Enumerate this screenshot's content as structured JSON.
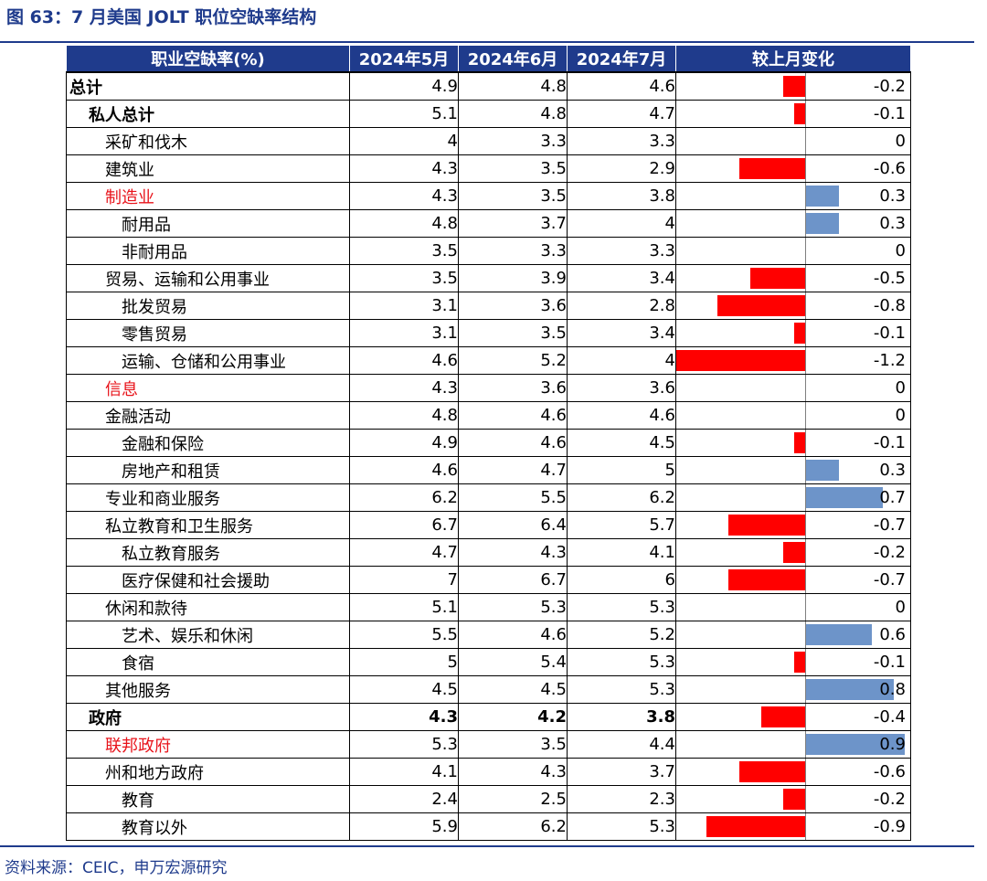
{
  "figure_title": "图 63：7 月美国 JOLT 职位空缺率结构",
  "source": "资料来源：CEIC，申万宏源研究",
  "colors": {
    "accent": "#1f3b8c",
    "negative_bar": "#ff0000",
    "positive_bar": "#6d94c9",
    "highlight_text": "#e8141b"
  },
  "headers": [
    "职业空缺率(%)",
    "2024年5月",
    "2024年6月",
    "2024年7月",
    "较上月变化"
  ],
  "rows": [
    {
      "label": "总计",
      "level": 0,
      "bold": false,
      "red": false,
      "may": "4.9",
      "jun": "4.8",
      "jul": "4.6",
      "change": "-0.2"
    },
    {
      "label": "私人总计",
      "level": 1,
      "bold": false,
      "red": false,
      "may": "5.1",
      "jun": "4.8",
      "jul": "4.7",
      "change": "-0.1"
    },
    {
      "label": "采矿和伐木",
      "level": 2,
      "bold": false,
      "red": false,
      "may": "4",
      "jun": "3.3",
      "jul": "3.3",
      "change": "0"
    },
    {
      "label": "建筑业",
      "level": 2,
      "bold": false,
      "red": false,
      "may": "4.3",
      "jun": "3.5",
      "jul": "2.9",
      "change": "-0.6"
    },
    {
      "label": "制造业",
      "level": 2,
      "bold": false,
      "red": true,
      "may": "4.3",
      "jun": "3.5",
      "jul": "3.8",
      "change": "0.3"
    },
    {
      "label": "耐用品",
      "level": 3,
      "bold": false,
      "red": false,
      "may": "4.8",
      "jun": "3.7",
      "jul": "4",
      "change": "0.3"
    },
    {
      "label": "非耐用品",
      "level": 3,
      "bold": false,
      "red": false,
      "may": "3.5",
      "jun": "3.3",
      "jul": "3.3",
      "change": "0"
    },
    {
      "label": "贸易、运输和公用事业",
      "level": 2,
      "bold": false,
      "red": false,
      "may": "3.5",
      "jun": "3.9",
      "jul": "3.4",
      "change": "-0.5"
    },
    {
      "label": "批发贸易",
      "level": 3,
      "bold": false,
      "red": false,
      "may": "3.1",
      "jun": "3.6",
      "jul": "2.8",
      "change": "-0.8"
    },
    {
      "label": "零售贸易",
      "level": 3,
      "bold": false,
      "red": false,
      "may": "3.1",
      "jun": "3.5",
      "jul": "3.4",
      "change": "-0.1"
    },
    {
      "label": "运输、仓储和公用事业",
      "level": 3,
      "bold": false,
      "red": false,
      "may": "4.6",
      "jun": "5.2",
      "jul": "4",
      "change": "-1.2"
    },
    {
      "label": "信息",
      "level": 2,
      "bold": false,
      "red": true,
      "may": "4.3",
      "jun": "3.6",
      "jul": "3.6",
      "change": "0"
    },
    {
      "label": "金融活动",
      "level": 2,
      "bold": false,
      "red": false,
      "may": "4.8",
      "jun": "4.6",
      "jul": "4.6",
      "change": "0"
    },
    {
      "label": "金融和保险",
      "level": 3,
      "bold": false,
      "red": false,
      "may": "4.9",
      "jun": "4.6",
      "jul": "4.5",
      "change": "-0.1"
    },
    {
      "label": "房地产和租赁",
      "level": 3,
      "bold": false,
      "red": false,
      "may": "4.6",
      "jun": "4.7",
      "jul": "5",
      "change": "0.3"
    },
    {
      "label": "专业和商业服务",
      "level": 2,
      "bold": false,
      "red": false,
      "may": "6.2",
      "jun": "5.5",
      "jul": "6.2",
      "change": "0.7"
    },
    {
      "label": "私立教育和卫生服务",
      "level": 2,
      "bold": false,
      "red": false,
      "may": "6.7",
      "jun": "6.4",
      "jul": "5.7",
      "change": "-0.7"
    },
    {
      "label": "私立教育服务",
      "level": 3,
      "bold": false,
      "red": false,
      "may": "4.7",
      "jun": "4.3",
      "jul": "4.1",
      "change": "-0.2"
    },
    {
      "label": "医疗保健和社会援助",
      "level": 3,
      "bold": false,
      "red": false,
      "may": "7",
      "jun": "6.7",
      "jul": "6",
      "change": "-0.7"
    },
    {
      "label": "休闲和款待",
      "level": 2,
      "bold": false,
      "red": false,
      "may": "5.1",
      "jun": "5.3",
      "jul": "5.3",
      "change": "0"
    },
    {
      "label": "艺术、娱乐和休闲",
      "level": 3,
      "bold": false,
      "red": false,
      "may": "5.5",
      "jun": "4.6",
      "jul": "5.2",
      "change": "0.6"
    },
    {
      "label": "食宿",
      "level": 3,
      "bold": false,
      "red": false,
      "may": "5",
      "jun": "5.4",
      "jul": "5.3",
      "change": "-0.1"
    },
    {
      "label": "其他服务",
      "level": 2,
      "bold": false,
      "red": false,
      "may": "4.5",
      "jun": "4.5",
      "jul": "5.3",
      "change": "0.8"
    },
    {
      "label": "政府",
      "level": 1,
      "bold": true,
      "red": false,
      "may": "4.3",
      "jun": "4.2",
      "jul": "3.8",
      "change": "-0.4"
    },
    {
      "label": "联邦政府",
      "level": 2,
      "bold": false,
      "red": true,
      "may": "5.3",
      "jun": "3.5",
      "jul": "4.4",
      "change": "0.9"
    },
    {
      "label": "州和地方政府",
      "level": 2,
      "bold": false,
      "red": false,
      "may": "4.1",
      "jun": "4.3",
      "jul": "3.7",
      "change": "-0.6"
    },
    {
      "label": "教育",
      "level": 3,
      "bold": false,
      "red": false,
      "may": "2.4",
      "jun": "2.5",
      "jul": "2.3",
      "change": "-0.2"
    },
    {
      "label": "教育以外",
      "level": 3,
      "bold": false,
      "red": false,
      "may": "5.9",
      "jun": "6.2",
      "jul": "5.3",
      "change": "-0.9"
    }
  ]
}
